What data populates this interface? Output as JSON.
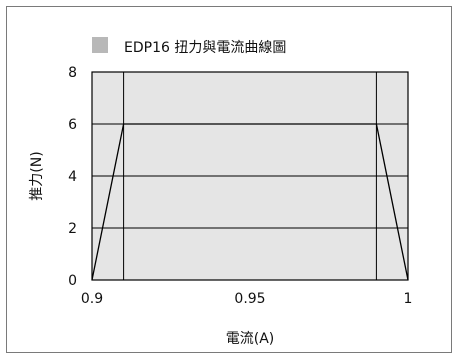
{
  "chart_data": {
    "type": "line",
    "title": "EDP16 扭力與電流曲線圖",
    "xlabel": "電流(A)",
    "ylabel": "推力(N)",
    "x": [
      0.9,
      0.91,
      0.99,
      1.0
    ],
    "series": [
      {
        "values": [
          0,
          6,
          6,
          0
        ]
      }
    ],
    "xlim": [
      0.9,
      1.0
    ],
    "ylim": [
      0,
      8
    ],
    "x_ticks": [
      0.9,
      0.95,
      1
    ],
    "x_tick_labels": [
      "0.9",
      "0.95",
      "1"
    ],
    "y_ticks": [
      0,
      2,
      4,
      6,
      8
    ],
    "y_tick_labels": [
      "0",
      "2",
      "4",
      "6",
      "8"
    ],
    "x_gridlines": [
      0.91,
      0.99
    ],
    "grid": true,
    "legend": "top-left",
    "colors": {
      "plot_background": "#e5e5e5",
      "line": "#000000",
      "grid": "#000000",
      "legend_swatch": "#b8b8b8"
    }
  }
}
